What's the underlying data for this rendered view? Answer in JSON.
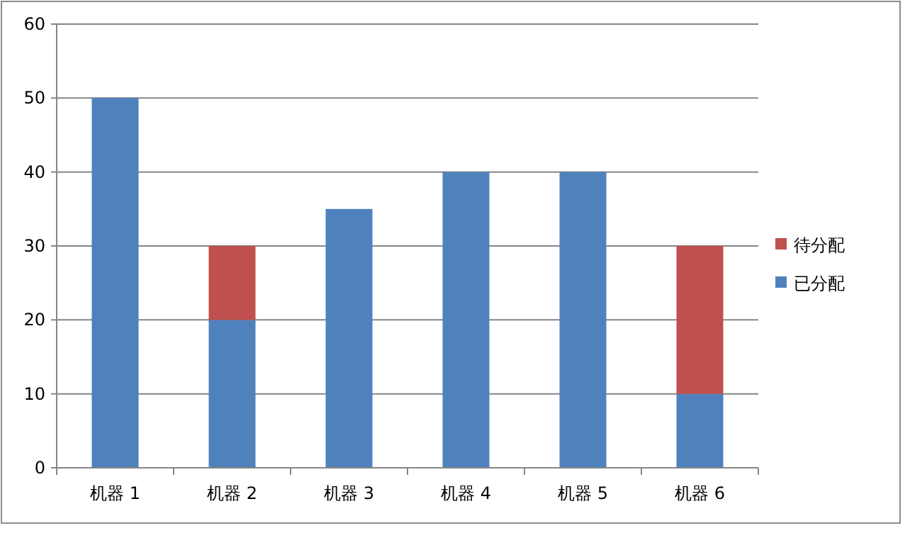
{
  "chart_data": {
    "type": "bar",
    "stacked": true,
    "categories": [
      "机器 1",
      "机器 2",
      "机器 3",
      "机器 4",
      "机器 5",
      "机器 6"
    ],
    "series": [
      {
        "name": "已分配",
        "color": "#4f81bd",
        "values": [
          50,
          20,
          35,
          40,
          40,
          10
        ]
      },
      {
        "name": "待分配",
        "color": "#c0504d",
        "values": [
          null,
          10,
          null,
          null,
          null,
          20
        ]
      }
    ],
    "ylim": [
      0,
      60
    ],
    "yticks": [
      0,
      10,
      20,
      30,
      40,
      50,
      60
    ],
    "grid": "y",
    "legend": "right"
  }
}
